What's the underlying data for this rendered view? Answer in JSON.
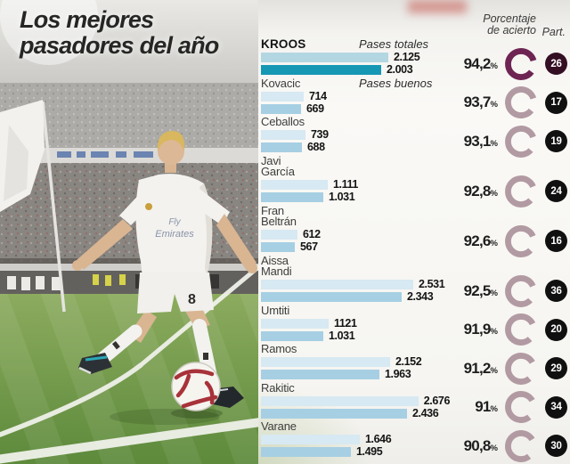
{
  "title": "Los mejores pasadores del año",
  "labels": {
    "pases_totales": "Pases totales",
    "pases_buenos": "Pases buenos",
    "accuracy_header_line1": "Porcentaje",
    "accuracy_header_line2": "de acierto",
    "part_header": "Part.",
    "percent": "%"
  },
  "photo": {
    "jersey_sponsor_line1": "Fly",
    "jersey_sponsor_line2": "Emirates",
    "shorts_number": "8"
  },
  "colors": {
    "bar_total": "#d7e9f2",
    "bar_good": "#a6cfe3",
    "bar_total_highlight": "#b3d7e2",
    "bar_good_highlight": "#1697b4",
    "donut_normal": "#b29aa3",
    "donut_highlight": "#6e2453",
    "badge_normal": "#101010",
    "badge_highlight": "#340f24",
    "text_dark": "#1e1e1e"
  },
  "chart_data": {
    "type": "bar",
    "title": "Los mejores pasadores del año",
    "series": [
      {
        "name": "Pases totales"
      },
      {
        "name": "Pases buenos"
      }
    ],
    "extra_columns": [
      "Porcentaje de acierto",
      "Part."
    ],
    "xlim": [
      0,
      2800
    ],
    "grid": false,
    "players": [
      {
        "name_line1": "KROOS",
        "name_line2": "",
        "total": 2125,
        "total_display": "2.125",
        "good": 2003,
        "good_display": "2.003",
        "accuracy": 94.2,
        "accuracy_display": "94,2",
        "matches": 26,
        "matches_display": "26",
        "highlight": true
      },
      {
        "name_line1": "Kovacic",
        "name_line2": "",
        "total": 714,
        "total_display": "714",
        "good": 669,
        "good_display": "669",
        "accuracy": 93.7,
        "accuracy_display": "93,7",
        "matches": 17,
        "matches_display": "17",
        "highlight": false
      },
      {
        "name_line1": "Ceballos",
        "name_line2": "",
        "total": 739,
        "total_display": "739",
        "good": 688,
        "good_display": "688",
        "accuracy": 93.1,
        "accuracy_display": "93,1",
        "matches": 19,
        "matches_display": "19",
        "highlight": false
      },
      {
        "name_line1": "Javi",
        "name_line2": "García",
        "total": 1111,
        "total_display": "1.111",
        "good": 1031,
        "good_display": "1.031",
        "accuracy": 92.8,
        "accuracy_display": "92,8",
        "matches": 24,
        "matches_display": "24",
        "highlight": false
      },
      {
        "name_line1": "Fran",
        "name_line2": "Beltrán",
        "total": 612,
        "total_display": "612",
        "good": 567,
        "good_display": "567",
        "accuracy": 92.6,
        "accuracy_display": "92,6",
        "matches": 16,
        "matches_display": "16",
        "highlight": false
      },
      {
        "name_line1": "Aissa",
        "name_line2": "Mandi",
        "total": 2531,
        "total_display": "2.531",
        "good": 2343,
        "good_display": "2.343",
        "accuracy": 92.5,
        "accuracy_display": "92,5",
        "matches": 36,
        "matches_display": "36",
        "highlight": false
      },
      {
        "name_line1": "Umtiti",
        "name_line2": "",
        "total": 1121,
        "total_display": "1121",
        "good": 1031,
        "good_display": "1.031",
        "accuracy": 91.9,
        "accuracy_display": "91,9",
        "matches": 20,
        "matches_display": "20",
        "highlight": false
      },
      {
        "name_line1": "Ramos",
        "name_line2": "",
        "total": 2152,
        "total_display": "2.152",
        "good": 1963,
        "good_display": "1.963",
        "accuracy": 91.2,
        "accuracy_display": "91,2",
        "matches": 29,
        "matches_display": "29",
        "highlight": false
      },
      {
        "name_line1": "Rakitic",
        "name_line2": "",
        "total": 2676,
        "total_display": "2.676",
        "good": 2436,
        "good_display": "2.436",
        "accuracy": 91.0,
        "accuracy_display": "91",
        "matches": 34,
        "matches_display": "34",
        "highlight": false
      },
      {
        "name_line1": "Varane",
        "name_line2": "",
        "total": 1646,
        "total_display": "1.646",
        "good": 1495,
        "good_display": "1.495",
        "accuracy": 90.8,
        "accuracy_display": "90,8",
        "matches": 30,
        "matches_display": "30",
        "highlight": false
      }
    ]
  }
}
